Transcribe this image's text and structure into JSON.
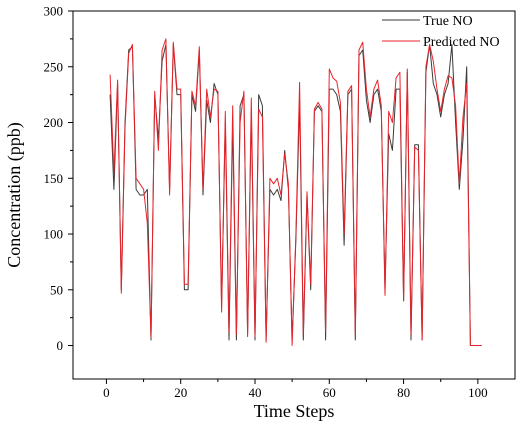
{
  "chart_data": {
    "type": "line",
    "xlabel": "Time Steps",
    "ylabel": "Concentration (ppb)",
    "xlim": [
      -9,
      110
    ],
    "ylim": [
      -30,
      300
    ],
    "x_ticks": [
      0,
      20,
      40,
      60,
      80,
      100
    ],
    "y_ticks": [
      0,
      50,
      100,
      150,
      200,
      250,
      300
    ],
    "grid": false,
    "legend_position": "top-right",
    "colors": {
      "true": "#3a3a3a",
      "predicted": "#e8242b"
    },
    "series": [
      {
        "name": "True NO",
        "x": [
          1,
          2,
          3,
          4,
          5,
          6,
          7,
          8,
          9,
          10,
          11,
          12,
          13,
          14,
          15,
          16,
          17,
          18,
          19,
          20,
          21,
          22,
          23,
          24,
          25,
          26,
          27,
          28,
          29,
          30,
          31,
          32,
          33,
          34,
          35,
          36,
          37,
          38,
          39,
          40,
          41,
          42,
          43,
          44,
          45,
          46,
          47,
          48,
          49,
          50,
          51,
          52,
          53,
          54,
          55,
          56,
          57,
          58,
          59,
          60,
          61,
          62,
          63,
          64,
          65,
          66,
          67,
          68,
          69,
          70,
          71,
          72,
          73,
          74,
          75,
          76,
          77,
          78,
          79,
          80,
          81,
          82,
          83,
          84,
          85,
          86,
          87,
          88,
          89,
          90,
          91,
          92,
          93,
          94,
          95,
          96,
          97,
          98,
          99,
          100,
          101
        ],
        "values": [
          225,
          140,
          235,
          50,
          200,
          265,
          268,
          140,
          135,
          135,
          140,
          5,
          225,
          185,
          255,
          270,
          140,
          270,
          225,
          225,
          50,
          50,
          225,
          210,
          265,
          135,
          220,
          200,
          235,
          225,
          35,
          200,
          5,
          200,
          5,
          215,
          225,
          10,
          210,
          5,
          225,
          215,
          5,
          140,
          135,
          140,
          130,
          175,
          140,
          5,
          95,
          220,
          5,
          135,
          50,
          210,
          215,
          210,
          5,
          230,
          230,
          225,
          210,
          90,
          225,
          230,
          5,
          260,
          265,
          220,
          200,
          225,
          230,
          210,
          50,
          190,
          175,
          230,
          230,
          40,
          245,
          5,
          180,
          180,
          5,
          245,
          270,
          235,
          225,
          205,
          225,
          235,
          270,
          200,
          140,
          185,
          250,
          0,
          0,
          0,
          0
        ]
      },
      {
        "name": "Predicted NO",
        "x": [
          1,
          2,
          3,
          4,
          5,
          6,
          7,
          8,
          9,
          10,
          11,
          12,
          13,
          14,
          15,
          16,
          17,
          18,
          19,
          20,
          21,
          22,
          23,
          24,
          25,
          26,
          27,
          28,
          29,
          30,
          31,
          32,
          33,
          34,
          35,
          36,
          37,
          38,
          39,
          40,
          41,
          42,
          43,
          44,
          45,
          46,
          47,
          48,
          49,
          50,
          51,
          52,
          53,
          54,
          55,
          56,
          57,
          58,
          59,
          60,
          61,
          62,
          63,
          64,
          65,
          66,
          67,
          68,
          69,
          70,
          71,
          72,
          73,
          74,
          75,
          76,
          77,
          78,
          79,
          80,
          81,
          82,
          83,
          84,
          85,
          86,
          87,
          88,
          89,
          90,
          91,
          92,
          93,
          94,
          95,
          96,
          97,
          98,
          99,
          100,
          101
        ],
        "values": [
          243,
          155,
          238,
          47,
          195,
          262,
          270,
          150,
          145,
          140,
          110,
          7,
          228,
          175,
          265,
          275,
          135,
          272,
          230,
          230,
          55,
          55,
          228,
          215,
          268,
          140,
          230,
          205,
          230,
          228,
          30,
          210,
          12,
          215,
          10,
          200,
          228,
          8,
          222,
          8,
          212,
          205,
          3,
          150,
          145,
          150,
          135,
          172,
          145,
          0,
          100,
          236,
          10,
          138,
          55,
          212,
          218,
          212,
          12,
          248,
          240,
          237,
          218,
          100,
          228,
          233,
          10,
          265,
          272,
          230,
          205,
          230,
          238,
          215,
          45,
          210,
          200,
          240,
          245,
          40,
          248,
          10,
          178,
          175,
          5,
          250,
          270,
          255,
          230,
          210,
          230,
          242,
          240,
          215,
          145,
          205,
          235,
          0,
          0,
          0,
          0
        ]
      }
    ]
  }
}
